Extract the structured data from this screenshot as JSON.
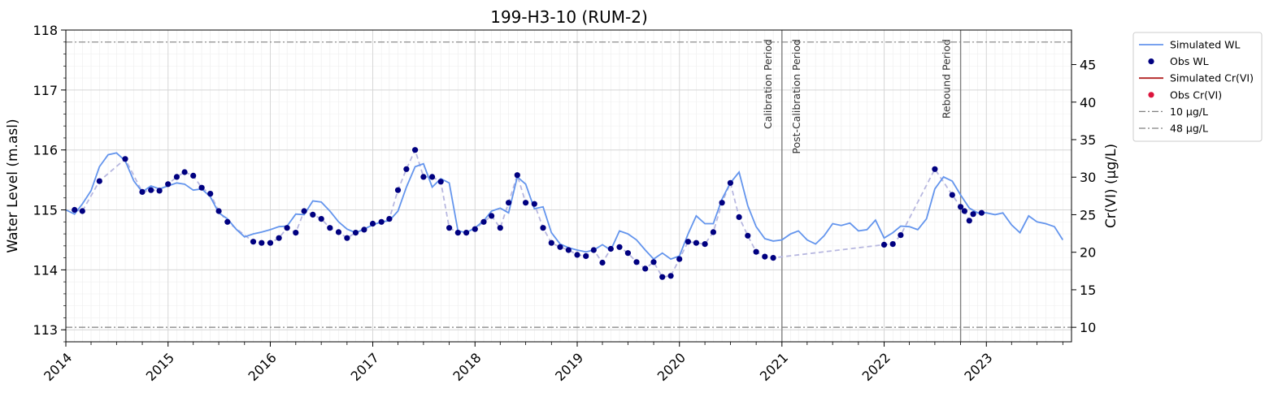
{
  "chart_data": {
    "type": "line",
    "title": "199-H3-10 (RUM-2)",
    "ylabel": "Water Level (m.asl)",
    "y2label": "Cr(VI) (µg/L)",
    "xlim": [
      "2014-01-01",
      "2023-11-01"
    ],
    "ylim": [
      112.8,
      118.0
    ],
    "y2lim": [
      8.07,
      49.6
    ],
    "x_ticks": [
      "2014",
      "2015",
      "2016",
      "2017",
      "2018",
      "2019",
      "2020",
      "2021",
      "2022",
      "2023"
    ],
    "y_ticks": [
      "113",
      "114",
      "115",
      "116",
      "117",
      "118"
    ],
    "y2_ticks": [
      "10",
      "15",
      "20",
      "25",
      "30",
      "35",
      "40",
      "45"
    ],
    "grid": true,
    "legend_position": "outside-top-right",
    "legend": [
      "Simulated WL",
      "Obs WL",
      "Simulated Cr(VI)",
      "Obs Cr(VI)",
      "10 µg/L",
      "48 µg/L"
    ],
    "colors": {
      "simulated_wl": "#6495ED",
      "obs_wl": "#000080",
      "obs_wl_dashed": "#b8b8e0",
      "simulated_crvi": "#b22222",
      "obs_crvi": "#dc143c",
      "threshold": "#808080",
      "period_line": "#808080"
    },
    "thresholds": [
      {
        "label": "10 µg/L",
        "value": 10
      },
      {
        "label": "48 µg/L",
        "value": 48
      }
    ],
    "periods": [
      {
        "label": "Calibration Period",
        "date": "2021-01-01",
        "side": "left"
      },
      {
        "label": "Post-Calibration Period",
        "date": "2021-01-01",
        "side": "right"
      },
      {
        "label": "Rebound Period",
        "date": "2022-10-01",
        "side": "left"
      }
    ],
    "series": [
      {
        "name": "Simulated WL",
        "style": "line",
        "points": [
          [
            "2014-01-01",
            115.0
          ],
          [
            "2014-02-01",
            114.93
          ],
          [
            "2014-03-01",
            115.1
          ],
          [
            "2014-04-01",
            115.32
          ],
          [
            "2014-05-01",
            115.72
          ],
          [
            "2014-06-01",
            115.92
          ],
          [
            "2014-07-01",
            115.95
          ],
          [
            "2014-08-01",
            115.82
          ],
          [
            "2014-09-01",
            115.48
          ],
          [
            "2014-10-01",
            115.3
          ],
          [
            "2014-11-01",
            115.4
          ],
          [
            "2014-12-01",
            115.35
          ],
          [
            "2015-01-01",
            115.4
          ],
          [
            "2015-02-01",
            115.45
          ],
          [
            "2015-03-01",
            115.43
          ],
          [
            "2015-04-01",
            115.33
          ],
          [
            "2015-05-01",
            115.35
          ],
          [
            "2015-06-01",
            115.22
          ],
          [
            "2015-07-01",
            114.95
          ],
          [
            "2015-08-01",
            114.85
          ],
          [
            "2015-09-01",
            114.68
          ],
          [
            "2015-10-01",
            114.55
          ],
          [
            "2015-11-01",
            114.6
          ],
          [
            "2015-12-01",
            114.63
          ],
          [
            "2016-01-01",
            114.67
          ],
          [
            "2016-02-01",
            114.72
          ],
          [
            "2016-03-01",
            114.73
          ],
          [
            "2016-04-01",
            114.93
          ],
          [
            "2016-05-01",
            114.92
          ],
          [
            "2016-06-01",
            115.15
          ],
          [
            "2016-07-01",
            115.13
          ],
          [
            "2016-08-01",
            114.98
          ],
          [
            "2016-09-01",
            114.8
          ],
          [
            "2016-10-01",
            114.68
          ],
          [
            "2016-11-01",
            114.62
          ],
          [
            "2016-12-01",
            114.68
          ],
          [
            "2017-01-01",
            114.75
          ],
          [
            "2017-02-01",
            114.8
          ],
          [
            "2017-03-01",
            114.82
          ],
          [
            "2017-04-01",
            114.98
          ],
          [
            "2017-05-01",
            115.38
          ],
          [
            "2017-06-01",
            115.72
          ],
          [
            "2017-07-01",
            115.77
          ],
          [
            "2017-08-01",
            115.38
          ],
          [
            "2017-09-01",
            115.52
          ],
          [
            "2017-10-01",
            115.45
          ],
          [
            "2017-11-01",
            114.65
          ],
          [
            "2017-12-01",
            114.62
          ],
          [
            "2018-01-01",
            114.7
          ],
          [
            "2018-02-01",
            114.82
          ],
          [
            "2018-03-01",
            114.98
          ],
          [
            "2018-04-01",
            115.03
          ],
          [
            "2018-05-01",
            114.95
          ],
          [
            "2018-06-01",
            115.55
          ],
          [
            "2018-07-01",
            115.43
          ],
          [
            "2018-08-01",
            115.02
          ],
          [
            "2018-09-01",
            115.05
          ],
          [
            "2018-10-01",
            114.62
          ],
          [
            "2018-11-01",
            114.43
          ],
          [
            "2018-12-01",
            114.37
          ],
          [
            "2019-01-01",
            114.33
          ],
          [
            "2019-02-01",
            114.3
          ],
          [
            "2019-03-01",
            114.33
          ],
          [
            "2019-04-01",
            114.42
          ],
          [
            "2019-05-01",
            114.33
          ],
          [
            "2019-06-01",
            114.65
          ],
          [
            "2019-07-01",
            114.6
          ],
          [
            "2019-08-01",
            114.5
          ],
          [
            "2019-09-01",
            114.33
          ],
          [
            "2019-10-01",
            114.18
          ],
          [
            "2019-11-01",
            114.28
          ],
          [
            "2019-12-01",
            114.18
          ],
          [
            "2020-01-01",
            114.23
          ],
          [
            "2020-02-01",
            114.6
          ],
          [
            "2020-03-01",
            114.9
          ],
          [
            "2020-04-01",
            114.77
          ],
          [
            "2020-05-01",
            114.77
          ],
          [
            "2020-06-01",
            115.18
          ],
          [
            "2020-07-01",
            115.45
          ],
          [
            "2020-08-01",
            115.63
          ],
          [
            "2020-09-01",
            115.07
          ],
          [
            "2020-10-01",
            114.72
          ],
          [
            "2020-11-01",
            114.52
          ],
          [
            "2020-12-01",
            114.48
          ],
          [
            "2021-01-01",
            114.5
          ],
          [
            "2021-02-01",
            114.6
          ],
          [
            "2021-03-01",
            114.65
          ],
          [
            "2021-04-01",
            114.5
          ],
          [
            "2021-05-01",
            114.43
          ],
          [
            "2021-06-01",
            114.57
          ],
          [
            "2021-07-01",
            114.77
          ],
          [
            "2021-08-01",
            114.74
          ],
          [
            "2021-09-01",
            114.78
          ],
          [
            "2021-10-01",
            114.65
          ],
          [
            "2021-11-01",
            114.67
          ],
          [
            "2021-12-01",
            114.83
          ],
          [
            "2022-01-01",
            114.53
          ],
          [
            "2022-02-01",
            114.62
          ],
          [
            "2022-03-01",
            114.73
          ],
          [
            "2022-04-01",
            114.72
          ],
          [
            "2022-05-01",
            114.67
          ],
          [
            "2022-06-01",
            114.85
          ],
          [
            "2022-07-01",
            115.35
          ],
          [
            "2022-08-01",
            115.55
          ],
          [
            "2022-09-01",
            115.48
          ],
          [
            "2022-10-01",
            115.25
          ],
          [
            "2022-11-01",
            115.03
          ],
          [
            "2022-12-01",
            114.95
          ],
          [
            "2023-01-01",
            114.95
          ],
          [
            "2023-02-01",
            114.92
          ],
          [
            "2023-03-01",
            114.95
          ],
          [
            "2023-04-01",
            114.75
          ],
          [
            "2023-05-01",
            114.62
          ],
          [
            "2023-06-01",
            114.9
          ],
          [
            "2023-07-01",
            114.8
          ],
          [
            "2023-08-01",
            114.77
          ],
          [
            "2023-09-01",
            114.72
          ],
          [
            "2023-10-01",
            114.5
          ]
        ]
      },
      {
        "name": "Obs WL",
        "style": "scatter",
        "points": [
          [
            "2014-02-01",
            115.0
          ],
          [
            "2014-03-01",
            114.98
          ],
          [
            "2014-05-01",
            115.48
          ],
          [
            "2014-08-01",
            115.85
          ],
          [
            "2014-10-01",
            115.3
          ],
          [
            "2014-11-01",
            115.33
          ],
          [
            "2014-12-01",
            115.32
          ],
          [
            "2015-01-01",
            115.43
          ],
          [
            "2015-02-01",
            115.55
          ],
          [
            "2015-03-01",
            115.63
          ],
          [
            "2015-04-01",
            115.57
          ],
          [
            "2015-05-01",
            115.37
          ],
          [
            "2015-06-01",
            115.27
          ],
          [
            "2015-07-01",
            114.98
          ],
          [
            "2015-08-01",
            114.8
          ],
          [
            "2015-11-01",
            114.47
          ],
          [
            "2015-12-01",
            114.45
          ],
          [
            "2016-01-01",
            114.45
          ],
          [
            "2016-02-01",
            114.53
          ],
          [
            "2016-03-01",
            114.7
          ],
          [
            "2016-04-01",
            114.62
          ],
          [
            "2016-05-01",
            114.98
          ],
          [
            "2016-06-01",
            114.92
          ],
          [
            "2016-07-01",
            114.85
          ],
          [
            "2016-08-01",
            114.7
          ],
          [
            "2016-09-01",
            114.63
          ],
          [
            "2016-10-01",
            114.53
          ],
          [
            "2016-11-01",
            114.62
          ],
          [
            "2016-12-01",
            114.67
          ],
          [
            "2017-01-01",
            114.77
          ],
          [
            "2017-02-01",
            114.8
          ],
          [
            "2017-03-01",
            114.85
          ],
          [
            "2017-04-01",
            115.33
          ],
          [
            "2017-05-01",
            115.68
          ],
          [
            "2017-06-01",
            116.0
          ],
          [
            "2017-07-01",
            115.55
          ],
          [
            "2017-08-01",
            115.55
          ],
          [
            "2017-09-01",
            115.47
          ],
          [
            "2017-10-01",
            114.7
          ],
          [
            "2017-11-01",
            114.62
          ],
          [
            "2017-12-01",
            114.62
          ],
          [
            "2018-01-01",
            114.68
          ],
          [
            "2018-02-01",
            114.8
          ],
          [
            "2018-03-01",
            114.9
          ],
          [
            "2018-04-01",
            114.7
          ],
          [
            "2018-05-01",
            115.12
          ],
          [
            "2018-06-01",
            115.58
          ],
          [
            "2018-07-01",
            115.12
          ],
          [
            "2018-08-01",
            115.1
          ],
          [
            "2018-09-01",
            114.7
          ],
          [
            "2018-10-01",
            114.45
          ],
          [
            "2018-11-01",
            114.38
          ],
          [
            "2018-12-01",
            114.33
          ],
          [
            "2019-01-01",
            114.25
          ],
          [
            "2019-02-01",
            114.23
          ],
          [
            "2019-03-01",
            114.33
          ],
          [
            "2019-04-01",
            114.12
          ],
          [
            "2019-05-01",
            114.35
          ],
          [
            "2019-06-01",
            114.38
          ],
          [
            "2019-07-01",
            114.28
          ],
          [
            "2019-08-01",
            114.13
          ],
          [
            "2019-09-01",
            114.02
          ],
          [
            "2019-10-01",
            114.13
          ],
          [
            "2019-11-01",
            113.88
          ],
          [
            "2019-12-01",
            113.9
          ],
          [
            "2020-01-01",
            114.18
          ],
          [
            "2020-02-01",
            114.47
          ],
          [
            "2020-03-01",
            114.45
          ],
          [
            "2020-04-01",
            114.43
          ],
          [
            "2020-05-01",
            114.63
          ],
          [
            "2020-06-01",
            115.12
          ],
          [
            "2020-07-01",
            115.45
          ],
          [
            "2020-08-01",
            114.88
          ],
          [
            "2020-09-01",
            114.57
          ],
          [
            "2020-10-01",
            114.3
          ],
          [
            "2020-11-01",
            114.22
          ],
          [
            "2020-12-01",
            114.2
          ],
          [
            "2022-01-01",
            114.42
          ],
          [
            "2022-02-01",
            114.43
          ],
          [
            "2022-03-01",
            114.58
          ],
          [
            "2022-07-01",
            115.68
          ],
          [
            "2022-09-01",
            115.25
          ],
          [
            "2022-10-01",
            115.05
          ],
          [
            "2022-10-15",
            114.98
          ],
          [
            "2022-11-01",
            114.82
          ],
          [
            "2022-11-15",
            114.93
          ],
          [
            "2022-12-15",
            114.95
          ]
        ]
      }
    ]
  }
}
